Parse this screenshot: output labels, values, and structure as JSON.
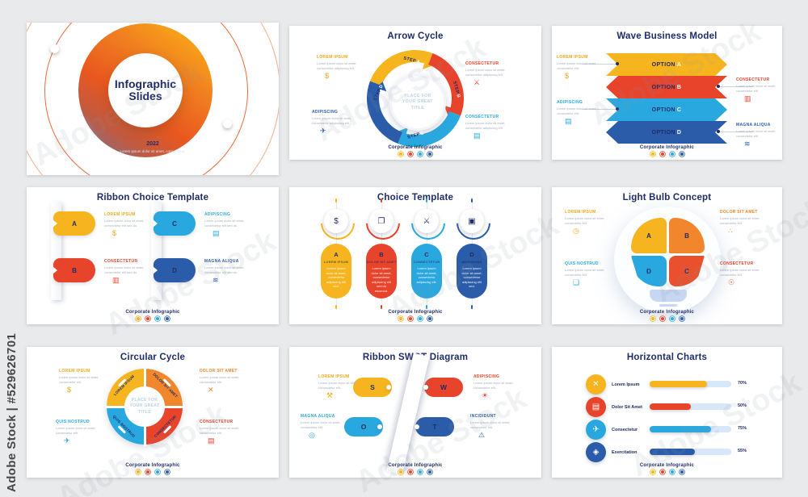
{
  "watermark": {
    "vertical": "Adobe Stock | #529626701",
    "diagonal": "Adobe Stock"
  },
  "colors": {
    "background": "#e9eaeb",
    "navy": "#1f2c67",
    "yellow": "#f6b51e",
    "orange": "#f1862c",
    "red": "#e8432b",
    "light_blue": "#29a8e0",
    "dark_blue": "#2b5ca9",
    "bulb_base": "#c7d7f3",
    "bar_track": "#d9e7fa",
    "series": [
      "#f6b51e",
      "#e8432b",
      "#29a8e0",
      "#2b5ca9"
    ]
  },
  "slides": {
    "cover": {
      "title": "Infographic Slides",
      "year": "2022",
      "subtitle": "Lorem ipsum dolor sit amet, consectetur."
    },
    "arrow_cycle": {
      "title": "Arrow Cycle",
      "center_title": "PLACE FOR YOUR GREAT TITLE",
      "steps": [
        {
          "prefix": "STEP",
          "letter": "A"
        },
        {
          "prefix": "STEP",
          "letter": "B"
        },
        {
          "prefix": "STEP",
          "letter": "C"
        },
        {
          "prefix": "STEP",
          "letter": "D"
        }
      ],
      "callouts": [
        {
          "heading": "LOREM IPSUM",
          "body": "Lorem ipsum dolor sit amet, consectetur adipiscing elit.",
          "icon": "diamond-dollar-icon",
          "glyph": "$"
        },
        {
          "heading": "CONSECTETUR",
          "body": "Lorem ipsum dolor sit amet, consectetur adipiscing elit.",
          "icon": "crossed-swords-icon",
          "glyph": "⚔"
        },
        {
          "heading": "ADIPISCING",
          "body": "Lorem ipsum dolor sit amet, consectetur adipiscing elit.",
          "icon": "rocket-icon",
          "glyph": "✈"
        },
        {
          "heading": "CONSECTETUR",
          "body": "Lorem ipsum dolor sit amet, consectetur adipiscing elit.",
          "icon": "clipboard-icon",
          "glyph": "▤"
        }
      ],
      "footer": "Corporate infographic"
    },
    "wave": {
      "title": "Wave Business Model",
      "options": [
        {
          "prefix": "OPTION",
          "letter": "A"
        },
        {
          "prefix": "OPTION",
          "letter": "B"
        },
        {
          "prefix": "OPTION",
          "letter": "C"
        },
        {
          "prefix": "OPTION",
          "letter": "D"
        }
      ],
      "callouts": [
        {
          "heading": "LOREM IPSUM",
          "body": "Lorem ipsum dolor sit amet, consectetur elit.",
          "icon": "dollar-coin-icon",
          "glyph": "$"
        },
        {
          "heading": "CONSECTETUR",
          "body": "Lorem ipsum dolor sit amet, consectetur elit.",
          "icon": "banknote-icon",
          "glyph": "▥"
        },
        {
          "heading": "ADIPISCING",
          "body": "Lorem ipsum dolor sit amet, consectetur elit.",
          "icon": "document-icon",
          "glyph": "▤"
        },
        {
          "heading": "MAGNA ALIQUA",
          "body": "Lorem ipsum dolor sit amet, consectetur elit.",
          "icon": "growth-steps-icon",
          "glyph": "≋"
        }
      ],
      "footer": "Corporate Infographic"
    },
    "ribbon_choice": {
      "title": "Ribbon Choice Template",
      "tabs": [
        {
          "letter": "A"
        },
        {
          "letter": "B"
        },
        {
          "letter": "C"
        },
        {
          "letter": "D"
        }
      ],
      "callouts": [
        {
          "heading": "LOREM IPSUM",
          "body": "Lorem ipsum dolor sit amet, consectetur elit sed do.",
          "icon": "dollar-coin-icon",
          "glyph": "$"
        },
        {
          "heading": "CONSECTETUR",
          "body": "Lorem ipsum dolor sit amet, consectetur elit sed do.",
          "icon": "banknote-icon",
          "glyph": "▥"
        },
        {
          "heading": "ADIPISCING",
          "body": "Lorem ipsum dolor sit amet, consectetur elit sed do.",
          "icon": "document-icon",
          "glyph": "▤"
        },
        {
          "heading": "MAGNA ALIQUA",
          "body": "Lorem ipsum dolor sit amet, consectetur elit sed do.",
          "icon": "hand-steps-icon",
          "glyph": "≋"
        }
      ],
      "footer": "Corporate Infographic"
    },
    "choice": {
      "title": "Choice Template",
      "items": [
        {
          "letter": "A",
          "heading": "LOREM IPSUM",
          "body": "Lorem ipsum dolor sit amet, consectetur adipiscing elit sed.",
          "icon": "diamond-dollar-icon",
          "glyph": "$"
        },
        {
          "letter": "B",
          "heading": "DOLOR SIT AMET",
          "body": "Lorem ipsum dolor sit amet, consectetur adipiscing elit sed do eiusmod.",
          "icon": "open-book-icon",
          "glyph": "❐"
        },
        {
          "letter": "C",
          "heading": "CONSECTETUR",
          "body": "Lorem ipsum dolor sit amet, consectetur adipiscing elit.",
          "icon": "crossed-swords-icon",
          "glyph": "⚔"
        },
        {
          "letter": "D",
          "heading": "ADIPISCING",
          "body": "Lorem ipsum dolor sit amet, consectetur adipiscing elit sed.",
          "icon": "cube-icon",
          "glyph": "▣"
        }
      ],
      "footer": "Corporate Infographic"
    },
    "bulb": {
      "title": "Light Bulb Concept",
      "segments": {
        "tl": "A",
        "tr": "B",
        "bl": "D",
        "br": "C"
      },
      "callouts": [
        {
          "heading": "LOREM IPSUM",
          "body": "Lorem ipsum dolor sit amet, consectetur elit.",
          "icon": "clock-icon",
          "glyph": "◷"
        },
        {
          "heading": "DOLOR SIT AMET",
          "body": "Lorem ipsum dolor sit amet, consectetur elit.",
          "icon": "audience-icon",
          "glyph": "∴"
        },
        {
          "heading": "QUIS NOSTRUD",
          "body": "Lorem ipsum dolor sit amet, consectetur elit.",
          "icon": "window-layout-icon",
          "glyph": "❏"
        },
        {
          "heading": "CONSECTETUR",
          "body": "Lorem ipsum dolor sit amet, consectetur elit.",
          "icon": "mind-icon",
          "glyph": "☉"
        }
      ],
      "footer": "Corporate Infographic"
    },
    "circular": {
      "title": "Circular Cycle",
      "center_title": "PLACE FOR YOUR GREAT TITLE",
      "segments": [
        "LOREM IPSUM",
        "DOLOR SIT AMET",
        "CONSECTETUR",
        "QUIS NOSTRUD"
      ],
      "callouts": [
        {
          "heading": "LOREM IPSUM",
          "body": "Lorem ipsum dolor sit amet, consectetur elit.",
          "icon": "diamond-dollar-icon",
          "glyph": "$"
        },
        {
          "heading": "DOLOR SIT AMET",
          "body": "Lorem ipsum dolor sit amet, consectetur elit.",
          "icon": "crossed-swords-icon",
          "glyph": "✕"
        },
        {
          "heading": "QUIS NOSTRUD",
          "body": "Lorem ipsum dolor sit amet, consectetur elit.",
          "icon": "rocket-icon",
          "glyph": "✈"
        },
        {
          "heading": "CONSECTETUR",
          "body": "Lorem ipsum dolor sit amet, consectetur elit.",
          "icon": "clipboard-icon",
          "glyph": "▤"
        }
      ],
      "footer": "Corporate Infographic"
    },
    "swot": {
      "title": "Ribbon SWOT Diagram",
      "items": [
        {
          "letter": "S"
        },
        {
          "letter": "W"
        },
        {
          "letter": "O"
        },
        {
          "letter": "T"
        }
      ],
      "callouts": [
        {
          "heading": "LOREM IPSUM",
          "body": "Lorem ipsum dolor sit amet, consectetur elit.",
          "icon": "strength-arm-icon",
          "glyph": "⚒"
        },
        {
          "heading": "ADIPISCING",
          "body": "Lorem ipsum dolor sit amet, consectetur elit.",
          "icon": "sun-gear-icon",
          "glyph": "☀"
        },
        {
          "heading": "MAGNA ALIQUA",
          "body": "Lorem ipsum dolor sit amet, consectetur elit.",
          "icon": "binoculars-icon",
          "glyph": "◎"
        },
        {
          "heading": "INCIDIDUNT",
          "body": "Lorem ipsum dolor sit amet, consectetur elit.",
          "icon": "alert-bell-icon",
          "glyph": "⚠"
        }
      ],
      "footer": "Corporate Infographic"
    },
    "hcharts": {
      "title": "Horizontal Charts",
      "rows": [
        {
          "label": "Lorem Ipsum",
          "percent": "70%",
          "value": 70,
          "icon": "crossed-swords-icon",
          "glyph": "✕"
        },
        {
          "label": "Dolor Sit Amet",
          "percent": "50%",
          "value": 50,
          "icon": "clipboard-icon",
          "glyph": "▤"
        },
        {
          "label": "Consectetur",
          "percent": "75%",
          "value": 75,
          "icon": "rocket-icon",
          "glyph": "✈"
        },
        {
          "label": "Exercitation",
          "percent": "55%",
          "value": 55,
          "icon": "diamond-icon",
          "glyph": "◈"
        }
      ],
      "footer": "Corporate Infographic"
    }
  },
  "chart_data": {
    "type": "bar",
    "title": "Horizontal Charts",
    "categories": [
      "Lorem Ipsum",
      "Dolor Sit Amet",
      "Consectetur",
      "Exercitation"
    ],
    "values": [
      70,
      50,
      75,
      55
    ],
    "xlabel": "",
    "ylabel": "",
    "xlim": [
      0,
      100
    ],
    "orientation": "horizontal",
    "colors": [
      "#f6b51e",
      "#e8432b",
      "#29a8e0",
      "#2b5ca9"
    ]
  }
}
